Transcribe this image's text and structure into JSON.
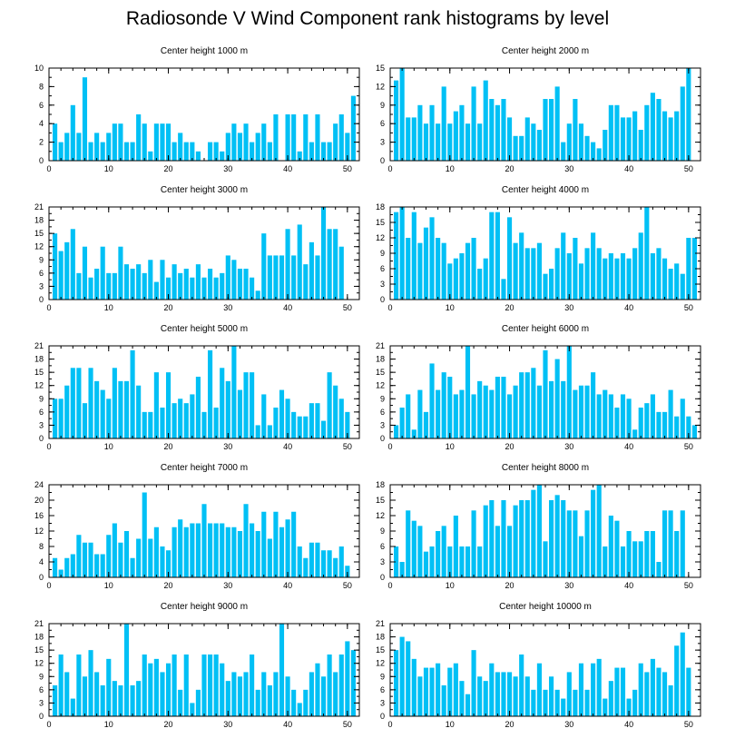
{
  "title": "Radiosonde V Wind Component rank histograms by level",
  "colors": {
    "bar": "#00c0f5",
    "axis": "#000000",
    "background": "#ffffff"
  },
  "chart_data": [
    {
      "type": "bar",
      "title": "Center height 1000 m",
      "xlim": [
        0,
        52
      ],
      "ylim": [
        0,
        10
      ],
      "xticks": [
        0,
        10,
        20,
        30,
        40,
        50
      ],
      "yticks": [
        0,
        2,
        4,
        6,
        8,
        10
      ],
      "values": [
        4,
        2,
        3,
        6,
        3,
        9,
        2,
        3,
        2,
        3,
        4,
        4,
        2,
        2,
        5,
        4,
        1,
        4,
        4,
        4,
        2,
        3,
        2,
        2,
        1,
        0,
        2,
        2,
        1,
        3,
        4,
        3,
        4,
        2,
        3,
        4,
        2,
        5,
        0,
        5,
        5,
        1,
        5,
        2,
        5,
        2,
        2,
        4,
        5,
        3,
        7
      ]
    },
    {
      "type": "bar",
      "title": "Center height 2000 m",
      "xlim": [
        0,
        52
      ],
      "ylim": [
        0,
        15
      ],
      "xticks": [
        0,
        10,
        20,
        30,
        40,
        50
      ],
      "yticks": [
        0,
        3,
        6,
        9,
        12,
        15
      ],
      "values": [
        13,
        15,
        7,
        7,
        9,
        6,
        9,
        6,
        12,
        6,
        8,
        9,
        6,
        12,
        6,
        13,
        10,
        9,
        10,
        7,
        4,
        4,
        7,
        6,
        5,
        10,
        10,
        12,
        3,
        6,
        10,
        6,
        4,
        3,
        2,
        5,
        9,
        9,
        7,
        7,
        8,
        5,
        9,
        11,
        10,
        8,
        7,
        8,
        12,
        15
      ]
    },
    {
      "type": "bar",
      "title": "Center height 3000 m",
      "xlim": [
        0,
        52
      ],
      "ylim": [
        0,
        21
      ],
      "xticks": [
        0,
        10,
        20,
        30,
        40,
        50
      ],
      "yticks": [
        0,
        3,
        6,
        9,
        12,
        15,
        18,
        21
      ],
      "values": [
        15,
        11,
        13,
        16,
        6,
        12,
        5,
        7,
        12,
        6,
        6,
        12,
        8,
        7,
        8,
        6,
        9,
        4,
        9,
        5,
        8,
        6,
        7,
        5,
        8,
        5,
        7,
        5,
        6,
        10,
        9,
        7,
        7,
        5,
        2,
        15,
        10,
        10,
        10,
        16,
        10,
        17,
        8,
        13,
        10,
        21,
        16,
        16,
        12
      ]
    },
    {
      "type": "bar",
      "title": "Center height 4000 m",
      "xlim": [
        0,
        52
      ],
      "ylim": [
        0,
        18
      ],
      "xticks": [
        0,
        10,
        20,
        30,
        40,
        50
      ],
      "yticks": [
        0,
        3,
        6,
        9,
        12,
        15,
        18
      ],
      "values": [
        17,
        18,
        12,
        17,
        11,
        14,
        16,
        12,
        11,
        7,
        8,
        9,
        11,
        12,
        6,
        8,
        17,
        17,
        4,
        16,
        11,
        13,
        10,
        10,
        11,
        5,
        6,
        10,
        13,
        9,
        12,
        7,
        10,
        13,
        10,
        8,
        9,
        8,
        9,
        8,
        10,
        13,
        18,
        9,
        10,
        8,
        6,
        7,
        5,
        12,
        12
      ]
    },
    {
      "type": "bar",
      "title": "Center height 5000 m",
      "xlim": [
        0,
        52
      ],
      "ylim": [
        0,
        21
      ],
      "xticks": [
        0,
        10,
        20,
        30,
        40,
        50
      ],
      "yticks": [
        0,
        3,
        6,
        9,
        12,
        15,
        18,
        21
      ],
      "values": [
        9,
        9,
        12,
        16,
        16,
        8,
        16,
        13,
        11,
        9,
        16,
        13,
        13,
        20,
        12,
        6,
        6,
        15,
        7,
        15,
        8,
        9,
        8,
        10,
        14,
        6,
        20,
        7,
        16,
        13,
        21,
        11,
        15,
        15,
        3,
        10,
        3,
        7,
        11,
        9,
        6,
        5,
        5,
        8,
        8,
        4,
        15,
        12,
        9,
        6
      ]
    },
    {
      "type": "bar",
      "title": "Center height 6000 m",
      "xlim": [
        0,
        52
      ],
      "ylim": [
        0,
        21
      ],
      "xticks": [
        0,
        10,
        20,
        30,
        40,
        50
      ],
      "yticks": [
        0,
        3,
        6,
        9,
        12,
        15,
        18,
        21
      ],
      "values": [
        3,
        7,
        10,
        2,
        11,
        6,
        17,
        11,
        15,
        14,
        10,
        11,
        21,
        10,
        13,
        12,
        11,
        14,
        14,
        10,
        12,
        15,
        15,
        16,
        12,
        20,
        13,
        18,
        13,
        21,
        11,
        12,
        12,
        15,
        10,
        11,
        10,
        7,
        10,
        9,
        2,
        7,
        8,
        10,
        6,
        6,
        11,
        5,
        9,
        5,
        3
      ]
    },
    {
      "type": "bar",
      "title": "Center height 7000 m",
      "xlim": [
        0,
        52
      ],
      "ylim": [
        0,
        24
      ],
      "xticks": [
        0,
        10,
        20,
        30,
        40,
        50
      ],
      "yticks": [
        0,
        4,
        8,
        12,
        16,
        20,
        24
      ],
      "values": [
        5,
        2,
        5,
        6,
        11,
        9,
        9,
        6,
        6,
        11,
        14,
        9,
        12,
        5,
        10,
        22,
        10,
        13,
        8,
        7,
        13,
        15,
        13,
        14,
        14,
        19,
        14,
        14,
        14,
        13,
        13,
        12,
        19,
        14,
        12,
        17,
        10,
        17,
        13,
        15,
        17,
        8,
        5,
        9,
        9,
        7,
        7,
        5,
        8,
        3
      ]
    },
    {
      "type": "bar",
      "title": "Center height 8000 m",
      "xlim": [
        0,
        52
      ],
      "ylim": [
        0,
        18
      ],
      "xticks": [
        0,
        10,
        20,
        30,
        40,
        50
      ],
      "yticks": [
        0,
        3,
        6,
        9,
        12,
        15,
        18
      ],
      "values": [
        6,
        3,
        13,
        11,
        10,
        5,
        6,
        9,
        10,
        6,
        12,
        6,
        6,
        13,
        6,
        14,
        15,
        10,
        15,
        10,
        14,
        15,
        15,
        17,
        18,
        7,
        15,
        16,
        15,
        13,
        13,
        8,
        13,
        17,
        18,
        6,
        12,
        11,
        6,
        9,
        7,
        7,
        9,
        9,
        3,
        13,
        13,
        9,
        13
      ]
    },
    {
      "type": "bar",
      "title": "Center height 9000 m",
      "xlim": [
        0,
        52
      ],
      "ylim": [
        0,
        21
      ],
      "xticks": [
        0,
        10,
        20,
        30,
        40,
        50
      ],
      "yticks": [
        0,
        3,
        6,
        9,
        12,
        15,
        18,
        21
      ],
      "values": [
        7,
        14,
        10,
        4,
        14,
        9,
        15,
        10,
        7,
        13,
        8,
        7,
        21,
        7,
        8,
        14,
        12,
        13,
        10,
        12,
        14,
        6,
        14,
        3,
        6,
        14,
        14,
        14,
        12,
        8,
        10,
        9,
        10,
        14,
        6,
        10,
        7,
        10,
        21,
        9,
        6,
        3,
        6,
        10,
        12,
        9,
        14,
        10,
        14,
        17,
        15
      ]
    },
    {
      "type": "bar",
      "title": "Center height 10000 m",
      "xlim": [
        0,
        52
      ],
      "ylim": [
        0,
        21
      ],
      "xticks": [
        0,
        10,
        20,
        30,
        40,
        50
      ],
      "yticks": [
        0,
        3,
        6,
        9,
        12,
        15,
        18,
        21
      ],
      "values": [
        15,
        18,
        17,
        13,
        9,
        11,
        11,
        12,
        7,
        11,
        12,
        8,
        5,
        15,
        9,
        8,
        12,
        10,
        10,
        10,
        9,
        14,
        9,
        6,
        12,
        6,
        9,
        6,
        4,
        10,
        6,
        12,
        6,
        12,
        13,
        4,
        8,
        11,
        11,
        4,
        6,
        12,
        10,
        13,
        11,
        10,
        7,
        16,
        19,
        11
      ]
    }
  ]
}
